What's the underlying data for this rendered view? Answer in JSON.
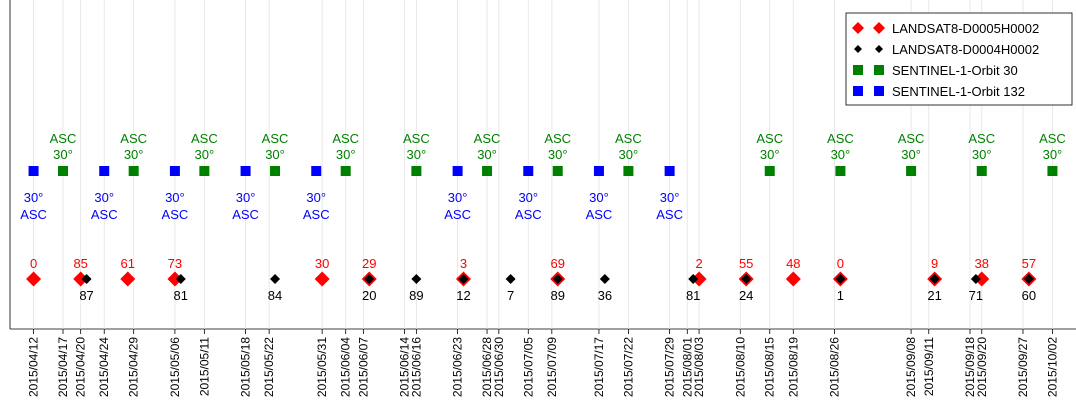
{
  "chart_data": {
    "type": "scatter",
    "colors": {
      "landsat_d0005": "#ff0000",
      "landsat_d0004": "#000000",
      "sentinel_30": "#008000",
      "sentinel_132": "#0000ff"
    },
    "legend": {
      "position": "top-right",
      "entries": [
        "LANDSAT8-D0005H0002",
        "LANDSAT8-D0004H0002",
        "SENTINEL-1-Orbit 30",
        "SENTINEL-1-Orbit 132"
      ]
    },
    "x_range": [
      "2015-04-08",
      "2015-10-06"
    ],
    "x_ticks": [
      "2015/04/12",
      "2015/04/17",
      "2015/04/20",
      "2015/04/24",
      "2015/04/29",
      "2015/05/06",
      "2015/05/11",
      "2015/05/18",
      "2015/05/22",
      "2015/05/31",
      "2015/06/04",
      "2015/06/07",
      "2015/06/14",
      "2015/06/16",
      "2015/06/23",
      "2015/06/28",
      "2015/06/30",
      "2015/07/05",
      "2015/07/09",
      "2015/07/17",
      "2015/07/22",
      "2015/07/29",
      "2015/08/01",
      "2015/08/03",
      "2015/08/10",
      "2015/08/15",
      "2015/08/19",
      "2015/08/26",
      "2015/09/08",
      "2015/09/11",
      "2015/09/18",
      "2015/09/20",
      "2015/09/27",
      "2015/10/02"
    ],
    "series": [
      {
        "name": "SENTINEL-1-Orbit 30",
        "label_line1": "ASC",
        "label_line2": "30°",
        "dates": [
          "2015-04-17",
          "2015-04-29",
          "2015-05-11",
          "2015-05-23",
          "2015-06-04",
          "2015-06-16",
          "2015-06-28",
          "2015-07-10",
          "2015-07-22",
          "2015-08-15",
          "2015-08-27",
          "2015-09-08",
          "2015-09-20",
          "2015-10-02"
        ]
      },
      {
        "name": "SENTINEL-1-Orbit 132",
        "label_line1": "30°",
        "label_line2": "ASC",
        "dates": [
          "2015-04-12",
          "2015-04-24",
          "2015-05-06",
          "2015-05-18",
          "2015-05-30",
          "2015-06-23",
          "2015-07-05",
          "2015-07-17",
          "2015-07-29"
        ]
      },
      {
        "name": "LANDSAT8-D0005H0002",
        "points": [
          {
            "date": "2015-04-12",
            "value": 0
          },
          {
            "date": "2015-04-20",
            "value": 85
          },
          {
            "date": "2015-04-28",
            "value": 61
          },
          {
            "date": "2015-05-06",
            "value": 73
          },
          {
            "date": "2015-05-31",
            "value": 30
          },
          {
            "date": "2015-06-08",
            "value": 29
          },
          {
            "date": "2015-06-24",
            "value": 3
          },
          {
            "date": "2015-07-10",
            "value": 69
          },
          {
            "date": "2015-08-03",
            "value": 2
          },
          {
            "date": "2015-08-11",
            "value": 55
          },
          {
            "date": "2015-08-19",
            "value": 48
          },
          {
            "date": "2015-08-27",
            "value": 0
          },
          {
            "date": "2015-09-12",
            "value": 9
          },
          {
            "date": "2015-09-20",
            "value": 38
          },
          {
            "date": "2015-09-28",
            "value": 57
          }
        ]
      },
      {
        "name": "LANDSAT8-D0004H0002",
        "points": [
          {
            "date": "2015-04-21",
            "value": 87
          },
          {
            "date": "2015-05-07",
            "value": 81
          },
          {
            "date": "2015-05-23",
            "value": 84
          },
          {
            "date": "2015-06-08",
            "value": 20
          },
          {
            "date": "2015-06-16",
            "value": 89
          },
          {
            "date": "2015-06-24",
            "value": 12
          },
          {
            "date": "2015-07-02",
            "value": 7
          },
          {
            "date": "2015-07-10",
            "value": 89
          },
          {
            "date": "2015-07-18",
            "value": 36
          },
          {
            "date": "2015-08-02",
            "value": 81
          },
          {
            "date": "2015-08-11",
            "value": 24
          },
          {
            "date": "2015-08-27",
            "value": 1
          },
          {
            "date": "2015-09-12",
            "value": 21
          },
          {
            "date": "2015-09-19",
            "value": 71
          },
          {
            "date": "2015-09-28",
            "value": 60
          }
        ]
      }
    ]
  }
}
